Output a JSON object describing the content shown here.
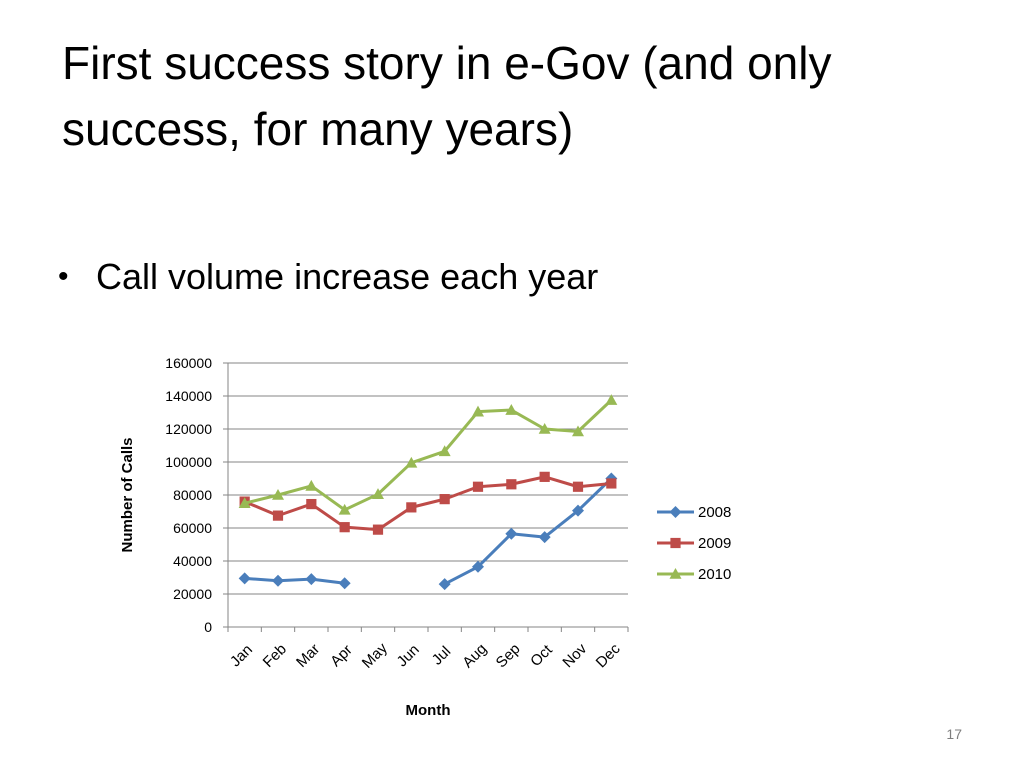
{
  "slide": {
    "title": "First success story in e-Gov (and only success, for many years)",
    "bullets": [
      "Call volume increase each year"
    ],
    "page_number": "17"
  },
  "chart_data": {
    "type": "line",
    "categories": [
      "Jan",
      "Feb",
      "Mar",
      "Apr",
      "May",
      "Jun",
      "Jul",
      "Aug",
      "Sep",
      "Oct",
      "Nov",
      "Dec"
    ],
    "series": [
      {
        "name": "2008",
        "color": "#4a7ebb",
        "marker": "diamond",
        "values": [
          29500,
          28000,
          29000,
          26500,
          null,
          null,
          26000,
          36500,
          56500,
          54500,
          70500,
          90000
        ]
      },
      {
        "name": "2009",
        "color": "#be4b48",
        "marker": "square",
        "values": [
          76000,
          67500,
          74500,
          60500,
          59000,
          72500,
          77500,
          85000,
          86500,
          91000,
          85000,
          87000
        ]
      },
      {
        "name": "2010",
        "color": "#98b954",
        "marker": "triangle",
        "values": [
          75000,
          80000,
          85500,
          71000,
          80500,
          99500,
          106500,
          130500,
          131500,
          120000,
          118500,
          137500
        ]
      }
    ],
    "xlabel": "Month",
    "ylabel": "Number of Calls",
    "ylim": [
      0,
      160000
    ],
    "yticks": [
      0,
      20000,
      40000,
      60000,
      80000,
      100000,
      120000,
      140000,
      160000
    ],
    "grid": true,
    "legend": "right"
  }
}
